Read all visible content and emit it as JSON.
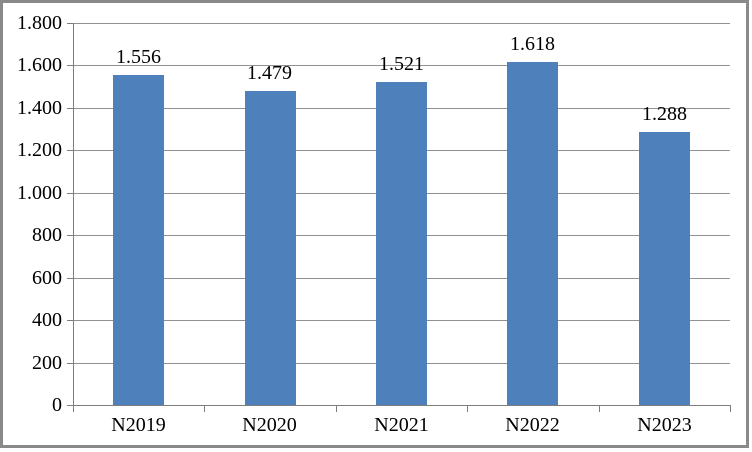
{
  "chart_data": {
    "type": "bar",
    "title": "",
    "categories": [
      "N2019",
      "N2020",
      "N2021",
      "N2022",
      "N2023"
    ],
    "values": [
      1556,
      1479,
      1521,
      1618,
      1288
    ],
    "data_labels": [
      "1.556",
      "1.479",
      "1.521",
      "1.618",
      "1.288"
    ],
    "xlabel": "",
    "ylabel": "",
    "y_axis": {
      "min": 0,
      "max": 1800,
      "step": 200,
      "tick_values": [
        0,
        200,
        400,
        600,
        800,
        1000,
        1200,
        1400,
        1600,
        1800
      ],
      "tick_labels": [
        "0",
        "200",
        "400",
        "600",
        "800",
        "1.000",
        "1.200",
        "1.400",
        "1.600",
        "1.800"
      ]
    },
    "grid": true,
    "legend": false,
    "colors": {
      "bar": "#4e81bc",
      "gridline": "#919191",
      "axis": "#7d7d7d",
      "text": "#000000",
      "frame_border": "#898989",
      "background": "#ffffff"
    }
  }
}
